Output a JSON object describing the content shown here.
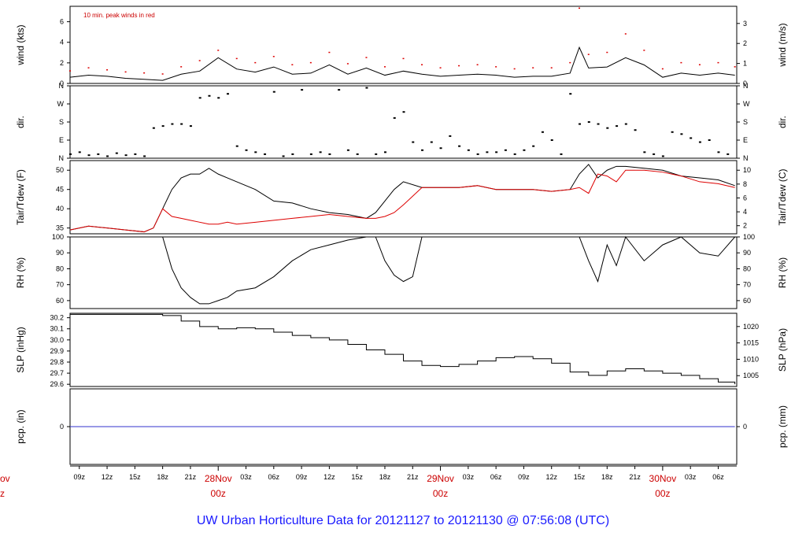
{
  "title": "UW Urban Horticulture Data for 20121127  to  20121130 @ 07:56:08  (UTC)",
  "colors": {
    "black": "#000000",
    "red": "#dd0000",
    "blue": "#3333cc",
    "title": "#1a1aff"
  },
  "x_axis": {
    "start_hour": 8,
    "end_hour": 80,
    "hour_ticks": [
      "09z",
      "12z",
      "15z",
      "18z",
      "21z",
      "03z",
      "06z",
      "09z",
      "12z",
      "15z",
      "18z",
      "21z",
      "03z",
      "06z",
      "09z",
      "12z",
      "15z",
      "18z",
      "21z",
      "03z",
      "06z"
    ],
    "day_labels": [
      {
        "date": "28Nov",
        "hour": "00z"
      },
      {
        "date": "29Nov",
        "hour": "00z"
      },
      {
        "date": "30Nov",
        "hour": "00z"
      }
    ],
    "left_edge_labels": [
      "ov",
      "z"
    ]
  },
  "chart_data": [
    {
      "type": "line",
      "id": "wind",
      "ylabel": "wind (kts)",
      "ylabel_right": "wind (m/s)",
      "yticks": [
        "0",
        "2",
        "4",
        "6"
      ],
      "yticks_right": [
        "0",
        "1",
        "2",
        "3"
      ],
      "ylim": [
        0,
        7.5
      ],
      "annotation": "10 min. peak winds in red",
      "series": [
        {
          "name": "wind",
          "color": "#000000",
          "x": [
            8,
            10,
            12,
            14,
            16,
            18,
            20,
            22,
            24,
            26,
            28,
            30,
            32,
            34,
            36,
            38,
            40,
            42,
            44,
            46,
            48,
            50,
            52,
            54,
            56,
            58,
            60,
            62,
            63,
            64,
            66,
            68,
            70,
            72,
            74,
            76,
            78,
            79.8
          ],
          "y": [
            0.6,
            0.8,
            0.7,
            0.5,
            0.4,
            0.3,
            0.9,
            1.2,
            2.5,
            1.4,
            1.1,
            1.6,
            0.9,
            1.0,
            1.8,
            0.9,
            1.5,
            0.8,
            1.2,
            0.9,
            0.7,
            0.8,
            0.9,
            0.8,
            0.6,
            0.7,
            0.7,
            1.0,
            3.5,
            1.5,
            1.6,
            2.5,
            1.8,
            0.6,
            1.0,
            0.8,
            1.0,
            0.8
          ]
        },
        {
          "name": "10 min. peak winds",
          "color": "#dd0000",
          "x": [
            8,
            10,
            12,
            14,
            16,
            18,
            20,
            22,
            24,
            26,
            28,
            30,
            32,
            34,
            36,
            38,
            40,
            42,
            44,
            46,
            48,
            50,
            52,
            54,
            56,
            58,
            60,
            62,
            63,
            64,
            66,
            68,
            70,
            72,
            74,
            76,
            78,
            79.8
          ],
          "y": [
            1.2,
            1.5,
            1.3,
            1.1,
            1.0,
            0.9,
            1.6,
            2.2,
            3.2,
            2.4,
            2.0,
            2.6,
            1.8,
            2.0,
            3.0,
            1.9,
            2.5,
            1.6,
            2.4,
            1.8,
            1.5,
            1.7,
            1.8,
            1.6,
            1.4,
            1.5,
            1.5,
            2.0,
            7.3,
            2.8,
            3.0,
            4.8,
            3.2,
            1.4,
            2.0,
            1.8,
            2.0,
            1.6
          ]
        }
      ]
    },
    {
      "type": "scatter",
      "id": "dir",
      "ylabel": "dir.",
      "ylabel_right": "dir.",
      "yticks": [
        "N",
        "E",
        "S",
        "W",
        "N"
      ],
      "ylim": [
        0,
        360
      ],
      "series": [
        {
          "name": "dir",
          "color": "#000000",
          "x": [
            8,
            9,
            10,
            11,
            12,
            13,
            14,
            15,
            16,
            17,
            18,
            19,
            20,
            21,
            22,
            23,
            24,
            25,
            26,
            27,
            28,
            29,
            30,
            31,
            32,
            33,
            34,
            35,
            36,
            37,
            38,
            39,
            40,
            41,
            42,
            43,
            44,
            45,
            46,
            47,
            48,
            49,
            50,
            51,
            52,
            53,
            54,
            55,
            56,
            57,
            58,
            59,
            60,
            61,
            62,
            63,
            64,
            65,
            66,
            67,
            68,
            69,
            70,
            71,
            72,
            73,
            74,
            75,
            76,
            77,
            78,
            79
          ],
          "y": [
            20,
            30,
            15,
            20,
            10,
            25,
            15,
            20,
            10,
            150,
            160,
            170,
            170,
            160,
            300,
            310,
            300,
            320,
            60,
            40,
            30,
            20,
            330,
            10,
            20,
            340,
            20,
            30,
            20,
            340,
            40,
            20,
            350,
            20,
            30,
            200,
            230,
            80,
            40,
            80,
            50,
            110,
            60,
            40,
            20,
            30,
            30,
            40,
            20,
            40,
            60,
            130,
            90,
            20,
            320,
            170,
            180,
            170,
            150,
            160,
            170,
            140,
            30,
            20,
            10,
            130,
            120,
            100,
            80,
            90,
            30,
            20
          ]
        }
      ]
    },
    {
      "type": "line",
      "id": "temp",
      "ylabel": "Tair/Tdew (F)",
      "ylabel_right": "Tair/Tdew (C)",
      "yticks": [
        "35",
        "40",
        "45",
        "50"
      ],
      "yticks_right": [
        "2",
        "4",
        "6",
        "8",
        "10"
      ],
      "ylim": [
        33.5,
        52.5
      ],
      "series": [
        {
          "name": "Tair",
          "color": "#000000",
          "x": [
            8,
            10,
            12,
            14,
            16,
            17,
            18,
            19,
            20,
            21,
            22,
            23,
            24,
            25,
            26,
            28,
            30,
            32,
            34,
            36,
            38,
            40,
            41,
            42,
            43,
            44,
            46,
            48,
            50,
            52,
            54,
            56,
            58,
            60,
            62,
            63,
            64,
            65,
            66,
            67,
            68,
            70,
            72,
            74,
            76,
            78,
            79.8
          ],
          "y": [
            34.5,
            35.5,
            35,
            34.5,
            34,
            35,
            40,
            45,
            48,
            49,
            49,
            50.5,
            49,
            48,
            47,
            45,
            42,
            41.5,
            40,
            39,
            38.5,
            37.5,
            39,
            42,
            45,
            47,
            45.5,
            45.5,
            45.5,
            46,
            45,
            45,
            45,
            44.5,
            45,
            49,
            51.5,
            48,
            50,
            51,
            51,
            50.5,
            50,
            48.5,
            48,
            47.5,
            46
          ]
        },
        {
          "name": "Tdew",
          "color": "#dd0000",
          "x": [
            8,
            10,
            12,
            14,
            16,
            17,
            18,
            19,
            20,
            21,
            22,
            23,
            24,
            25,
            26,
            28,
            30,
            32,
            34,
            36,
            38,
            40,
            41,
            42,
            43,
            44,
            46,
            48,
            50,
            52,
            54,
            56,
            58,
            60,
            62,
            63,
            64,
            65,
            66,
            67,
            68,
            70,
            72,
            74,
            76,
            78,
            79.8
          ],
          "y": [
            34.5,
            35.5,
            35,
            34.5,
            34,
            35,
            40,
            38,
            37.5,
            37,
            36.5,
            36,
            36,
            36.5,
            36,
            36.5,
            37,
            37.5,
            38,
            38.5,
            38,
            37.5,
            37.5,
            38,
            39,
            41,
            45.5,
            45.5,
            45.5,
            46,
            45,
            45,
            45,
            44.5,
            45,
            45.5,
            44,
            49,
            48.5,
            47,
            50,
            50,
            49.5,
            48.5,
            47,
            46.5,
            45.5
          ]
        }
      ]
    },
    {
      "type": "line",
      "id": "rh",
      "ylabel": "RH (%)",
      "ylabel_right": "RH (%)",
      "yticks": [
        "60",
        "70",
        "80",
        "90",
        "100"
      ],
      "ylim": [
        55,
        100
      ],
      "series": [
        {
          "name": "RH",
          "color": "#000000",
          "x": [
            8,
            10,
            12,
            14,
            16,
            17,
            18,
            19,
            20,
            21,
            22,
            23,
            24,
            25,
            26,
            28,
            30,
            32,
            34,
            36,
            38,
            40,
            41,
            42,
            43,
            44,
            45,
            46,
            48,
            50,
            52,
            54,
            56,
            58,
            60,
            62,
            63,
            64,
            65,
            66,
            67,
            68,
            70,
            72,
            74,
            76,
            78,
            79.8
          ],
          "y": [
            100,
            100,
            100,
            100,
            100,
            100,
            100,
            80,
            68,
            62,
            58,
            58,
            60,
            62,
            66,
            68,
            75,
            85,
            92,
            95,
            98,
            100,
            100,
            85,
            76,
            72,
            75,
            100,
            100,
            100,
            100,
            100,
            100,
            100,
            100,
            100,
            100,
            85,
            72,
            95,
            82,
            100,
            85,
            95,
            100,
            90,
            88,
            100
          ]
        }
      ]
    },
    {
      "type": "line",
      "id": "slp",
      "ylabel": "SLP (inHg)",
      "ylabel_right": "SLP (hPa)",
      "yticks": [
        "29.6",
        "29.7",
        "29.8",
        "29.9",
        "30.0",
        "30.1",
        "30.2"
      ],
      "yticks_right": [
        "1005",
        "1010",
        "1015",
        "1020"
      ],
      "ylim": [
        29.58,
        30.24
      ],
      "series": [
        {
          "name": "SLP",
          "color": "#000000",
          "x": [
            8,
            10,
            12,
            14,
            16,
            18,
            20,
            22,
            24,
            26,
            28,
            30,
            32,
            34,
            36,
            38,
            40,
            42,
            44,
            46,
            48,
            50,
            52,
            54,
            56,
            58,
            60,
            62,
            64,
            66,
            68,
            70,
            72,
            74,
            76,
            78,
            79.8
          ],
          "y": [
            30.23,
            30.23,
            30.23,
            30.23,
            30.23,
            30.22,
            30.17,
            30.12,
            30.1,
            30.11,
            30.1,
            30.07,
            30.04,
            30.02,
            30.0,
            29.96,
            29.91,
            29.87,
            29.81,
            29.77,
            29.76,
            29.78,
            29.81,
            29.84,
            29.85,
            29.83,
            29.79,
            29.71,
            29.68,
            29.72,
            29.74,
            29.72,
            29.7,
            29.68,
            29.65,
            29.62,
            29.6
          ]
        }
      ]
    },
    {
      "type": "line",
      "id": "pcp",
      "ylabel": "pcp. (in)",
      "ylabel_right": "pcp. (mm)",
      "yticks": [
        "0"
      ],
      "yticks_right": [
        "0"
      ],
      "ylim": [
        -1,
        1
      ],
      "series": [
        {
          "name": "pcp",
          "color": "#3333cc",
          "x": [
            8,
            79.8
          ],
          "y": [
            0,
            0
          ]
        }
      ]
    }
  ]
}
